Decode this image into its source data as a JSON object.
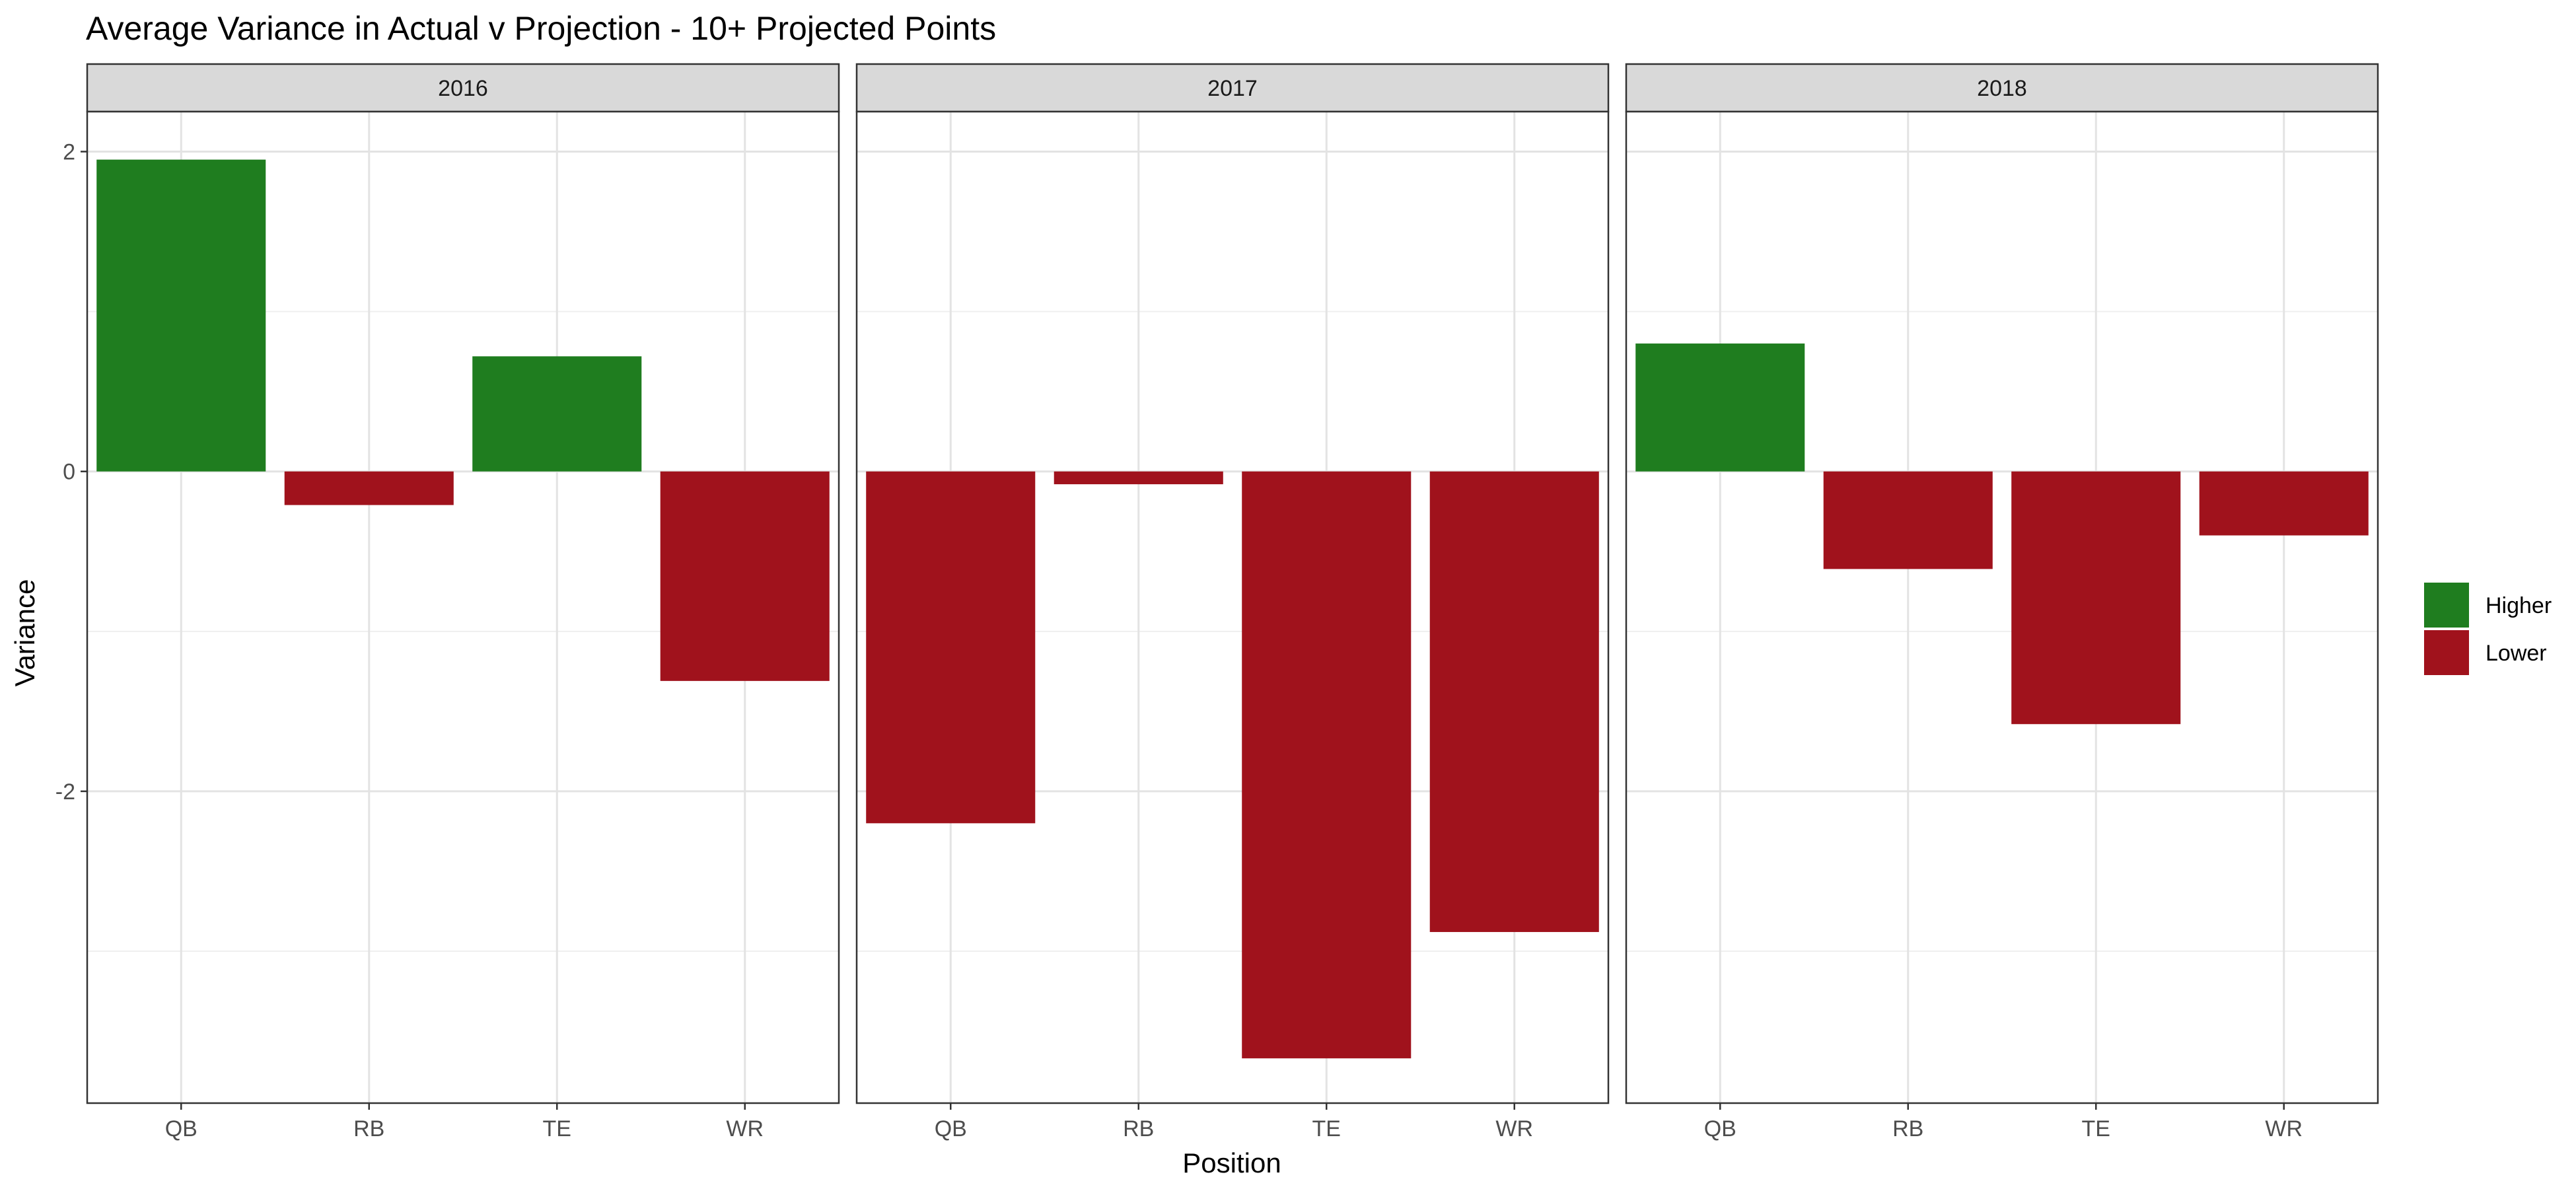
{
  "chart_data": {
    "type": "bar",
    "title": "Average Variance in Actual v Projection - 10+ Projected Points",
    "xlabel": "Position",
    "ylabel": "Variance",
    "categories": [
      "QB",
      "RB",
      "TE",
      "WR"
    ],
    "ylim": [
      -3.95,
      2.25
    ],
    "yticks": [
      2,
      0,
      -2
    ],
    "grid": true,
    "legend": {
      "placement": "right",
      "entries": [
        {
          "label": "Higher",
          "color": "#1f7d1f"
        },
        {
          "label": "Lower",
          "color": "#a0121c"
        }
      ]
    },
    "panels": [
      {
        "facet": "2016",
        "values": [
          1.95,
          -0.21,
          0.72,
          -1.31
        ]
      },
      {
        "facet": "2017",
        "values": [
          -2.2,
          -0.08,
          -3.67,
          -2.88
        ]
      },
      {
        "facet": "2018",
        "values": [
          0.8,
          -0.61,
          -1.58,
          -0.4
        ]
      }
    ]
  }
}
